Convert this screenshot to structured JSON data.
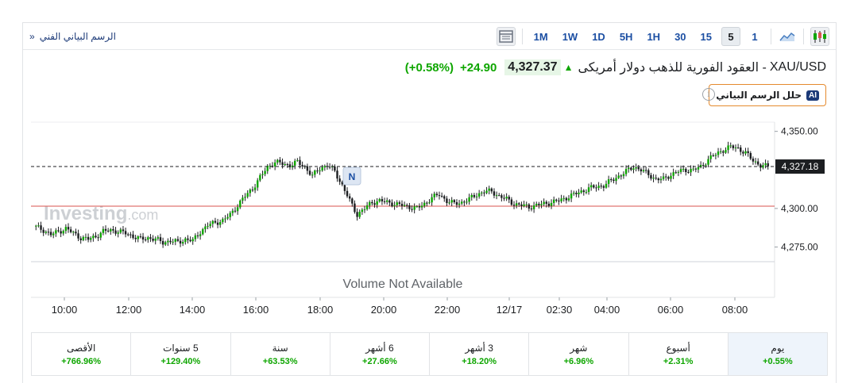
{
  "toolbar": {
    "tech_link": "الرسم البياني الفني",
    "tech_link_chevron": "»",
    "timeframes": [
      "1M",
      "1W",
      "1D",
      "5H",
      "1H",
      "30",
      "15",
      "5",
      "1"
    ],
    "active_timeframe": "5"
  },
  "instrument": {
    "symbol": "XAU/USD",
    "name": "- العقود الفورية للذهب دولار أمريكى",
    "price": "4,327.37",
    "change": "+24.90",
    "change_pct": "(+0.58%)"
  },
  "ai_button": {
    "badge": "AI",
    "label": "حلل الرسم البياني"
  },
  "info_glyph": "i",
  "chart": {
    "watermark_main": "Investing",
    "watermark_suffix": ".com",
    "volume_text": "Volume Not Available",
    "news_marker": "N",
    "current_price_label": "4,327.18",
    "y_ticks": [
      "4,350.00",
      "4,300.00",
      "4,275.00"
    ],
    "x_ticks": [
      "10:00",
      "12:00",
      "14:00",
      "16:00",
      "18:00",
      "20:00",
      "22:00",
      "12/17",
      "02:30",
      "04:00",
      "06:00",
      "08:00"
    ],
    "colors": {
      "up": "#0ea600",
      "down": "#1c1e21",
      "reference_line": "#d9534f"
    }
  },
  "chart_data": {
    "type": "candlestick",
    "ylim": [
      4266,
      4356
    ],
    "current_price": 4327.18,
    "reference_price": 4301.5,
    "close_path": [
      [
        0,
        4288
      ],
      [
        3,
        4286
      ],
      [
        6,
        4283
      ],
      [
        9,
        4285
      ],
      [
        12,
        4287
      ],
      [
        15,
        4284
      ],
      [
        18,
        4281
      ],
      [
        21,
        4280
      ],
      [
        24,
        4282
      ],
      [
        27,
        4285
      ],
      [
        30,
        4286
      ],
      [
        33,
        4285
      ],
      [
        36,
        4284
      ],
      [
        39,
        4282
      ],
      [
        42,
        4280
      ],
      [
        45,
        4281
      ],
      [
        48,
        4280
      ],
      [
        51,
        4278
      ],
      [
        54,
        4279
      ],
      [
        57,
        4278
      ],
      [
        60,
        4280
      ],
      [
        63,
        4279
      ],
      [
        66,
        4285
      ],
      [
        69,
        4289
      ],
      [
        72,
        4291
      ],
      [
        75,
        4292
      ],
      [
        78,
        4296
      ],
      [
        81,
        4302
      ],
      [
        84,
        4308
      ],
      [
        87,
        4313
      ],
      [
        90,
        4320
      ],
      [
        93,
        4327
      ],
      [
        96,
        4330
      ],
      [
        99,
        4329
      ],
      [
        102,
        4328
      ],
      [
        105,
        4330
      ],
      [
        108,
        4327
      ],
      [
        111,
        4321
      ],
      [
        114,
        4326
      ],
      [
        117,
        4328
      ],
      [
        120,
        4324
      ],
      [
        123,
        4315
      ],
      [
        126,
        4305
      ],
      [
        129,
        4296
      ],
      [
        132,
        4300
      ],
      [
        135,
        4304
      ],
      [
        138,
        4305
      ],
      [
        141,
        4304
      ],
      [
        144,
        4303
      ],
      [
        147,
        4302
      ],
      [
        150,
        4301
      ],
      [
        153,
        4300
      ],
      [
        156,
        4303
      ],
      [
        159,
        4307
      ],
      [
        162,
        4309
      ],
      [
        165,
        4305
      ],
      [
        168,
        4303
      ],
      [
        171,
        4304
      ],
      [
        174,
        4306
      ],
      [
        177,
        4309
      ],
      [
        180,
        4311
      ],
      [
        183,
        4311
      ],
      [
        186,
        4308
      ],
      [
        189,
        4306
      ],
      [
        192,
        4303
      ],
      [
        195,
        4302
      ],
      [
        198,
        4301
      ],
      [
        201,
        4302
      ],
      [
        204,
        4303
      ],
      [
        207,
        4304
      ],
      [
        210,
        4305
      ],
      [
        213,
        4307
      ],
      [
        216,
        4309
      ],
      [
        219,
        4311
      ],
      [
        222,
        4313
      ],
      [
        225,
        4314
      ],
      [
        228,
        4315
      ],
      [
        231,
        4318
      ],
      [
        234,
        4321
      ],
      [
        237,
        4324
      ],
      [
        240,
        4327
      ],
      [
        243,
        4325
      ],
      [
        246,
        4322
      ],
      [
        249,
        4319
      ],
      [
        252,
        4319
      ],
      [
        255,
        4322
      ],
      [
        258,
        4324
      ],
      [
        261,
        4325
      ],
      [
        264,
        4325
      ],
      [
        267,
        4327
      ],
      [
        270,
        4332
      ],
      [
        273,
        4335
      ],
      [
        276,
        4338
      ],
      [
        279,
        4340
      ],
      [
        282,
        4339
      ],
      [
        285,
        4336
      ],
      [
        288,
        4331
      ],
      [
        291,
        4328
      ],
      [
        294,
        4327
      ]
    ],
    "x_range": [
      -2,
      296
    ]
  },
  "performance": [
    {
      "label": "يوم",
      "value": "+0.55%"
    },
    {
      "label": "أسبوع",
      "value": "+2.31%"
    },
    {
      "label": "شهر",
      "value": "+6.96%"
    },
    {
      "label": "3 أشهر",
      "value": "+18.20%"
    },
    {
      "label": "6 أشهر",
      "value": "+27.66%"
    },
    {
      "label": "سنة",
      "value": "+63.53%"
    },
    {
      "label": "5 سنوات",
      "value": "+129.40%"
    },
    {
      "label": "الأقصى",
      "value": "+766.96%"
    }
  ],
  "active_performance": 0
}
